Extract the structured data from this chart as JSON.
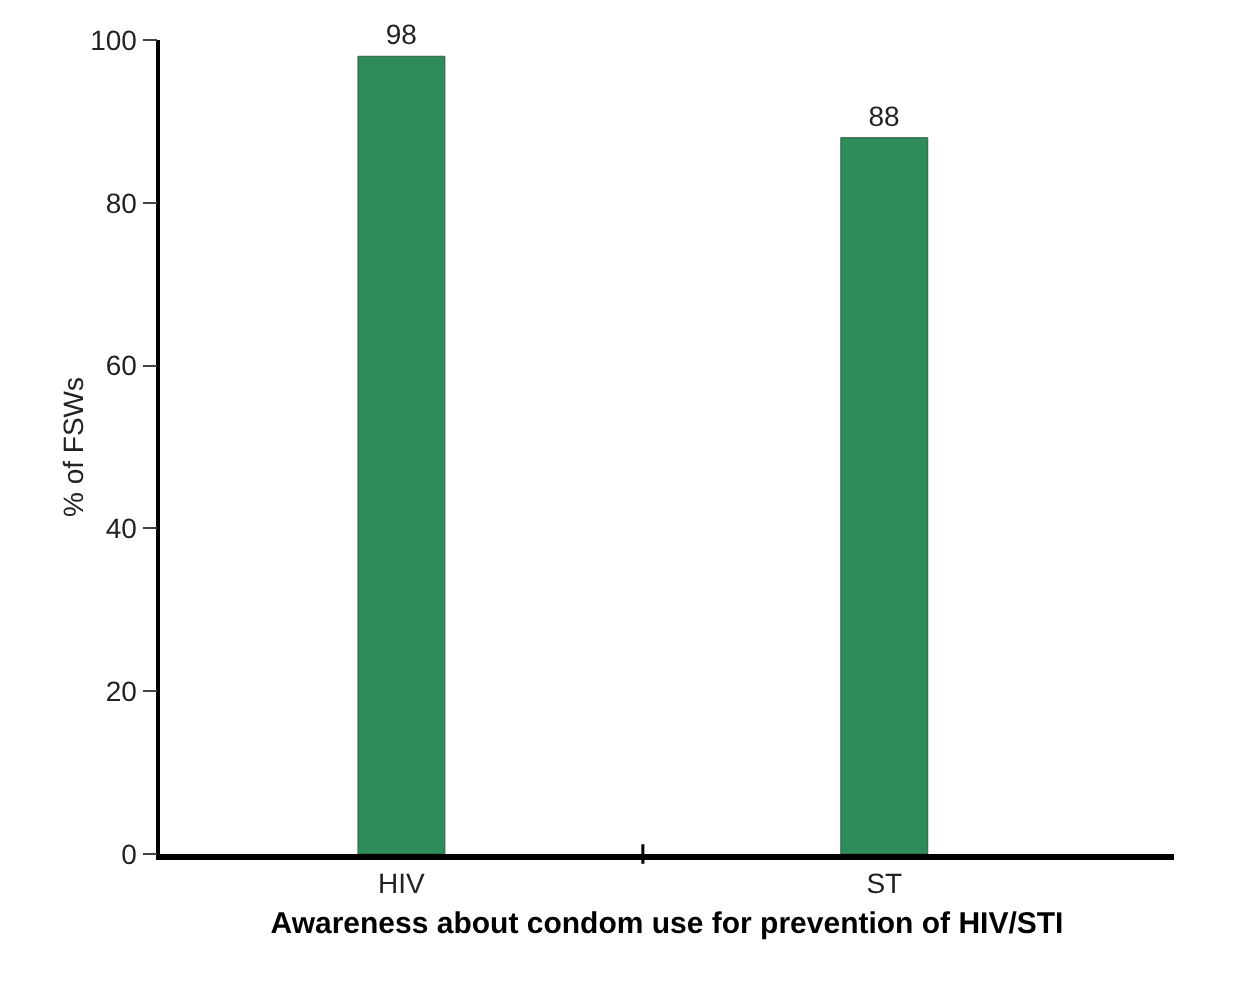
{
  "chart_data": {
    "type": "bar",
    "xlabel": "Awareness about condom use for prevention of HIV/STI",
    "ylabel": "% of FSWs",
    "categories": [
      "HIV",
      "ST"
    ],
    "values": [
      98,
      88
    ],
    "color": "#2e8b5a",
    "data_labels": true,
    "ylim": [
      0,
      100
    ],
    "yticks": [
      0,
      20,
      40,
      60,
      80,
      100
    ],
    "grid": false,
    "legend": false
  }
}
